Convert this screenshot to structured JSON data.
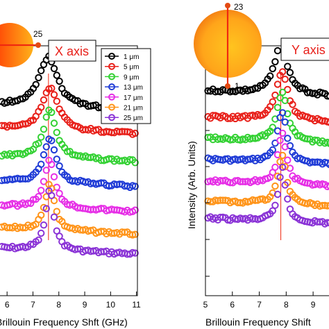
{
  "colors": {
    "series": [
      "#000000",
      "#e8201a",
      "#33d133",
      "#1f3bd6",
      "#e62ee6",
      "#ff9419",
      "#8a33d6"
    ],
    "disc_inner": "#ffb21a",
    "disc_outer": "#f06a12",
    "disc_edge_left": "#ff3300",
    "guide_line": "#f02810",
    "pin": "#e34a12"
  },
  "chart_data": [
    {
      "type": "scatter",
      "panel": "left",
      "title": "",
      "xlabel": "Brillouin Frequency Shft (GHz)",
      "ylabel": "",
      "xlim": [
        5.7,
        11.05
      ],
      "x_ticks": [
        "6",
        "7",
        "8",
        "9",
        "10",
        "11"
      ],
      "peak_x": 7.6,
      "legend": {
        "placement": "top-right",
        "entries": [
          "1 μm",
          "5 μm",
          "9 μm",
          "13 μm",
          "17 μm",
          "21 μm",
          "25 μm"
        ]
      },
      "annotation": {
        "text": "X axis",
        "marker_label": "25"
      },
      "series": [
        {
          "name": "1 μm",
          "baseline": 0.235,
          "peak_height": 0.2,
          "width": 0.42,
          "peak_x": 7.6
        },
        {
          "name": "5 μm",
          "baseline": 0.33,
          "peak_height": 0.17,
          "width": 0.38,
          "peak_x": 7.65
        },
        {
          "name": "9 μm",
          "baseline": 0.44,
          "peak_height": 0.19,
          "width": 0.3,
          "peak_x": 7.65
        },
        {
          "name": "13 μm",
          "baseline": 0.54,
          "peak_height": 0.18,
          "width": 0.28,
          "peak_x": 7.65
        },
        {
          "name": "17 μm",
          "baseline": 0.64,
          "peak_height": 0.19,
          "width": 0.25,
          "peak_x": 7.65
        },
        {
          "name": "21 μm",
          "baseline": 0.73,
          "peak_height": 0.19,
          "width": 0.22,
          "peak_x": 7.65
        },
        {
          "name": "25 μm",
          "baseline": 0.81,
          "peak_height": 0.24,
          "width": 0.2,
          "peak_x": 7.65
        }
      ]
    },
    {
      "type": "scatter",
      "panel": "right",
      "title": "",
      "xlabel": "Brillouin Frequency Shift",
      "ylabel": "Intensity (Arb. Units)",
      "xlim": [
        5,
        9.9
      ],
      "x_ticks": [
        "5",
        "6",
        "7",
        "8",
        "9"
      ],
      "peak_x": 7.8,
      "annotation": {
        "text": "Y axis",
        "marker_top": "23",
        "marker_bottom": "1"
      },
      "series": [
        {
          "name": "1 μm",
          "baseline": 0.18,
          "peak_height": 0.21,
          "width": 0.28,
          "peak_x": 7.8
        },
        {
          "name": "5 μm",
          "baseline": 0.285,
          "peak_height": 0.2,
          "width": 0.25,
          "peak_x": 7.85
        },
        {
          "name": "9 μm",
          "baseline": 0.37,
          "peak_height": 0.2,
          "width": 0.23,
          "peak_x": 7.85
        },
        {
          "name": "13 μm",
          "baseline": 0.455,
          "peak_height": 0.2,
          "width": 0.21,
          "peak_x": 7.85
        },
        {
          "name": "17 μm",
          "baseline": 0.54,
          "peak_height": 0.2,
          "width": 0.19,
          "peak_x": 7.85
        },
        {
          "name": "21 μm",
          "baseline": 0.62,
          "peak_height": 0.2,
          "width": 0.18,
          "peak_x": 7.85
        },
        {
          "name": "25 μm",
          "baseline": 0.69,
          "peak_height": 0.22,
          "width": 0.16,
          "peak_x": 7.85
        }
      ]
    }
  ]
}
